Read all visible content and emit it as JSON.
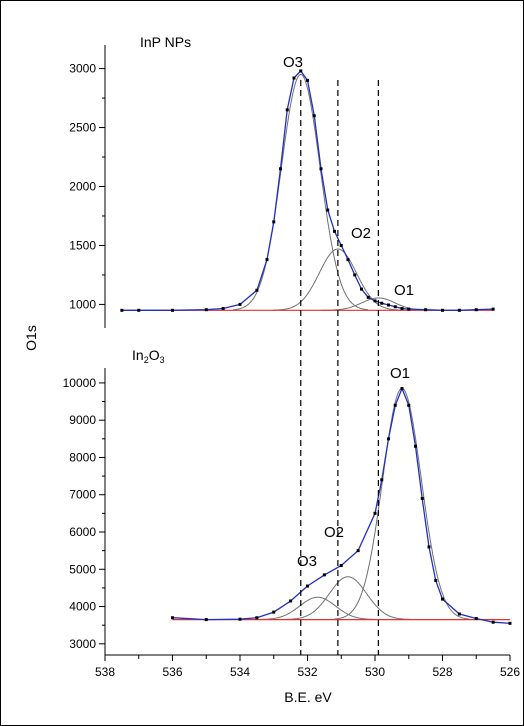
{
  "chart_data": [
    {
      "type": "line",
      "panel": "InP NPs",
      "title": "InP NPs",
      "xlabel": "B.E. eV",
      "ylabel": "O1s",
      "xlim": [
        538,
        526
      ],
      "ylim": [
        800,
        3200
      ],
      "yticks": [
        1000,
        1500,
        2000,
        2500,
        3000
      ],
      "peak_labels": [
        "O3",
        "O2",
        "O1"
      ],
      "peak_centers": [
        532.2,
        531.1,
        529.9
      ],
      "background": 950,
      "series": [
        {
          "color": "#2030c0",
          "x": [
            537.5,
            537.0,
            536.0,
            535.0,
            534.5,
            534.0,
            533.5,
            533.2,
            533.0,
            532.8,
            532.6,
            532.4,
            532.2,
            532.0,
            531.8,
            531.6,
            531.4,
            531.2,
            531.0,
            530.8,
            530.6,
            530.4,
            530.2,
            530.0,
            529.8,
            529.6,
            529.4,
            529.2,
            529.0,
            528.5,
            528.0,
            527.5,
            527.0,
            526.5
          ],
          "y": [
            950,
            950,
            950,
            955,
            965,
            1000,
            1120,
            1380,
            1700,
            2150,
            2650,
            2920,
            2980,
            2900,
            2600,
            2150,
            1800,
            1620,
            1500,
            1380,
            1250,
            1130,
            1060,
            1030,
            1010,
            995,
            980,
            965,
            960,
            955,
            950,
            950,
            955,
            960
          ]
        },
        {
          "name": "O3",
          "color": "#707070",
          "center": 532.2,
          "fwhm": 1.35,
          "amplitude": 2000
        },
        {
          "name": "O2",
          "color": "#707070",
          "center": 531.1,
          "fwhm": 1.3,
          "amplitude": 520
        },
        {
          "name": "O1",
          "color": "#707070",
          "center": 529.9,
          "fwhm": 1.15,
          "amplitude": 105
        },
        {
          "name": "background",
          "color": "#e03030",
          "constant": 950
        }
      ]
    },
    {
      "type": "line",
      "panel": "In2O3",
      "title_main": "In",
      "title_sub1": "2",
      "title_mid": "O",
      "title_sub2": "3",
      "xlabel": "B.E. eV",
      "ylabel": "O1s",
      "xlim": [
        538,
        526
      ],
      "ylim": [
        2700,
        10400
      ],
      "yticks": [
        3000,
        4000,
        5000,
        6000,
        7000,
        8000,
        9000,
        10000
      ],
      "xticks": [
        538,
        536,
        534,
        532,
        530,
        528,
        526
      ],
      "peak_labels": [
        "O3",
        "O2",
        "O1"
      ],
      "peak_centers": [
        531.7,
        530.8,
        529.2
      ],
      "background": 3650,
      "series": [
        {
          "color": "#2030c0",
          "x": [
            536.0,
            535.0,
            534.0,
            533.5,
            533.0,
            532.5,
            532.0,
            531.5,
            531.0,
            530.5,
            530.0,
            529.8,
            529.6,
            529.4,
            529.2,
            529.0,
            528.8,
            528.6,
            528.4,
            528.2,
            528.0,
            527.5,
            527.0,
            526.5,
            526.0
          ],
          "y": [
            3700,
            3650,
            3660,
            3700,
            3850,
            4150,
            4550,
            4850,
            5100,
            5500,
            6500,
            7400,
            8500,
            9400,
            9850,
            9400,
            8300,
            6900,
            5600,
            4700,
            4200,
            3800,
            3680,
            3580,
            3550
          ]
        },
        {
          "name": "O3",
          "color": "#707070",
          "center": 531.7,
          "fwhm": 1.25,
          "amplitude": 600
        },
        {
          "name": "O2",
          "color": "#707070",
          "center": 530.8,
          "fwhm": 1.3,
          "amplitude": 1150
        },
        {
          "name": "O1",
          "color": "#707070",
          "center": 529.2,
          "fwhm": 1.35,
          "amplitude": 6200
        },
        {
          "name": "background",
          "color": "#e03030",
          "constant": 3650
        }
      ]
    }
  ],
  "dashed_lines_at": [
    532.2,
    531.1,
    529.9
  ]
}
